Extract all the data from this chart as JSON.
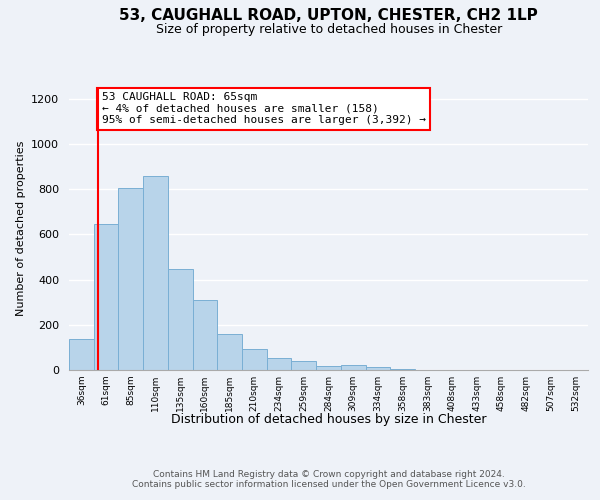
{
  "title": "53, CAUGHALL ROAD, UPTON, CHESTER, CH2 1LP",
  "subtitle": "Size of property relative to detached houses in Chester",
  "xlabel": "Distribution of detached houses by size in Chester",
  "ylabel": "Number of detached properties",
  "bin_labels": [
    "36sqm",
    "61sqm",
    "85sqm",
    "110sqm",
    "135sqm",
    "160sqm",
    "185sqm",
    "210sqm",
    "234sqm",
    "259sqm",
    "284sqm",
    "309sqm",
    "334sqm",
    "358sqm",
    "383sqm",
    "408sqm",
    "433sqm",
    "458sqm",
    "482sqm",
    "507sqm",
    "532sqm"
  ],
  "bar_values": [
    135,
    645,
    805,
    860,
    445,
    310,
    158,
    95,
    52,
    42,
    18,
    22,
    12,
    5,
    2,
    1,
    0,
    1,
    0,
    0,
    0
  ],
  "bar_color": "#b8d4ea",
  "bar_edge_color": "#7aafd4",
  "property_line_color": "red",
  "annotation_box_text": "53 CAUGHALL ROAD: 65sqm\n← 4% of detached houses are smaller (158)\n95% of semi-detached houses are larger (3,392) →",
  "ylim": [
    0,
    1250
  ],
  "yticks": [
    0,
    200,
    400,
    600,
    800,
    1000,
    1200
  ],
  "footer_text": "Contains HM Land Registry data © Crown copyright and database right 2024.\nContains public sector information licensed under the Open Government Licence v3.0.",
  "bg_color": "#eef2f8"
}
